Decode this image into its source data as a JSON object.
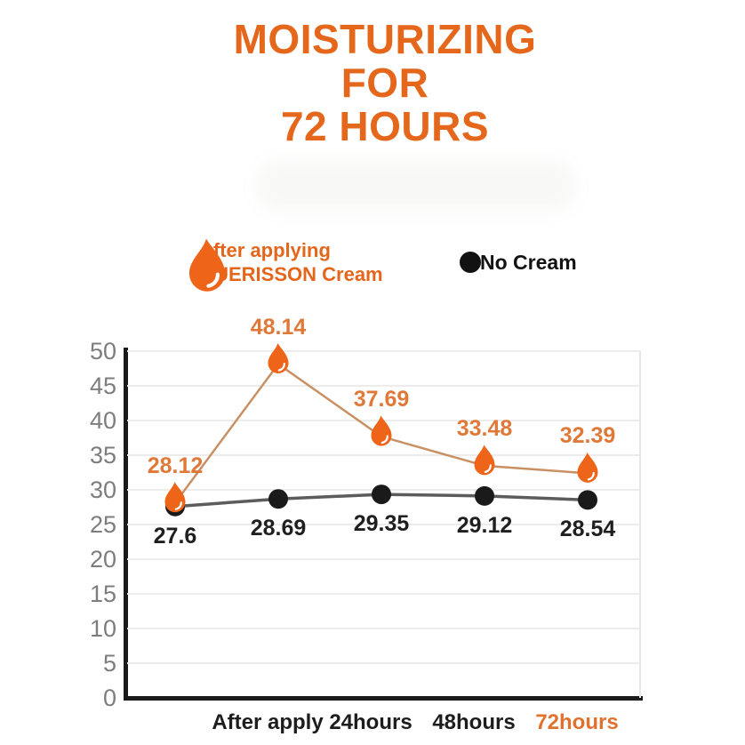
{
  "title": {
    "lines": [
      "MOISTURIZING",
      "FOR",
      "72 HOURS"
    ]
  },
  "legend": {
    "cream": {
      "icon": "droplet-icon",
      "line1": "After applying",
      "line2": "GUERISSON Cream"
    },
    "nocream": {
      "icon": "dot-icon",
      "label": "No Cream"
    }
  },
  "colors": {
    "title_orange": "#e5671b",
    "legend_orange": "#e4661c",
    "droplet_fill": "#ee6419",
    "cream_line": "#c89063",
    "cream_label": "#e07938",
    "nocream_line": "#5c5c5c",
    "nocream_marker": "#1a1a1a",
    "nocream_label": "#1f1f1f",
    "ytick_gray": "#7d7d7d",
    "gridline": "#ececec",
    "axis_black": "#1a1a1a",
    "xtick_black": "#1d1d1d",
    "xtick_highlight": "#e0722e"
  },
  "chart_data": {
    "type": "line",
    "categories": [
      "",
      "After apply",
      "24hours",
      "48hours",
      "72hours"
    ],
    "category_colors": [
      "#1d1d1d",
      "#1d1d1d",
      "#1d1d1d",
      "#1d1d1d",
      "#e0722e"
    ],
    "series": [
      {
        "name": "After applying GUERISSON Cream",
        "marker": "droplet",
        "marker_color": "#ee6419",
        "line_color": "#c89063",
        "label_color": "#e07938",
        "values": [
          28.12,
          48.14,
          37.69,
          33.48,
          32.39
        ]
      },
      {
        "name": "No Cream",
        "marker": "circle",
        "marker_color": "#1a1a1a",
        "line_color": "#5c5c5c",
        "label_color": "#1f1f1f",
        "values": [
          27.6,
          28.69,
          29.35,
          29.12,
          28.54
        ]
      }
    ],
    "title": "MOISTURIZING FOR 72 HOURS",
    "xlabel": "",
    "ylabel": "",
    "ylim": [
      0,
      50
    ],
    "yticks": [
      0,
      5,
      10,
      15,
      20,
      25,
      30,
      35,
      40,
      45,
      50
    ],
    "grid": true,
    "legend_position": "top"
  }
}
